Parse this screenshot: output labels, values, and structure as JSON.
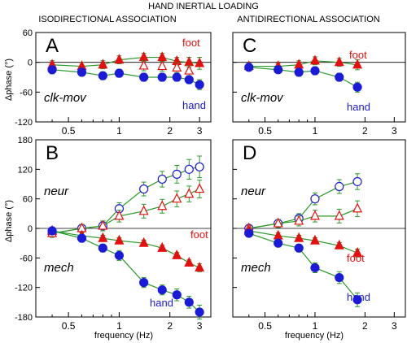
{
  "figure": {
    "title": "HAND INERTIAL LOADING",
    "column_titles": [
      "ISODIRECTIONAL ASSOCIATION",
      "ANTIDIRECTIONAL ASSOCIATION"
    ],
    "xlabel": "frequency (Hz)",
    "ylabel": "Δphase (°)"
  },
  "colors": {
    "hand": "#1a1adb",
    "foot": "#e80e0e",
    "fit": "#2a9a2a",
    "axis": "#000000",
    "zero_line": "#000000"
  },
  "chart_data": [
    {
      "panel": "A",
      "type": "scatter",
      "condition_label": "clk-mov",
      "x_scale": "log",
      "xlim": [
        0.32,
        3.5
      ],
      "xticks": [
        0.5,
        1,
        2,
        3
      ],
      "xtick_labels": [
        "0.5",
        "1",
        "2",
        "3"
      ],
      "ylim": [
        -120,
        60
      ],
      "yticks": [
        60,
        0,
        -60,
        -120
      ],
      "annotations": [
        {
          "text": "foot",
          "series": "foot"
        },
        {
          "text": "hand",
          "series": "hand"
        }
      ],
      "series": [
        {
          "name": "foot",
          "marker": "triangle-filled",
          "x": [
            0.4,
            0.6,
            0.8,
            1.0,
            1.4,
            1.8,
            2.2,
            2.6,
            3.0
          ],
          "y": [
            -5,
            -8,
            -5,
            5,
            10,
            10,
            2,
            0,
            -2
          ],
          "err": [
            8,
            8,
            8,
            8,
            8,
            8,
            8,
            10,
            12
          ]
        },
        {
          "name": "foot fit",
          "marker": "triangle-open",
          "x": [
            1.4,
            1.8,
            2.2,
            2.6
          ],
          "y": [
            -7,
            -8,
            -11,
            -17
          ],
          "err": [
            10,
            10,
            10,
            10
          ]
        },
        {
          "name": "hand",
          "marker": "circle-filled",
          "x": [
            0.4,
            0.6,
            0.8,
            1.0,
            1.4,
            1.8,
            2.2,
            2.6,
            3.0
          ],
          "y": [
            -15,
            -20,
            -27,
            -22,
            -30,
            -30,
            -30,
            -35,
            -45
          ],
          "err": [
            8,
            8,
            8,
            8,
            8,
            8,
            8,
            8,
            10
          ]
        }
      ]
    },
    {
      "panel": "C",
      "type": "scatter",
      "condition_label": "clk-mov",
      "x_scale": "log",
      "xlim": [
        0.32,
        3.5
      ],
      "xticks": [
        0.5,
        1,
        2,
        3
      ],
      "xtick_labels": [
        "0.5",
        "1",
        "2",
        "3"
      ],
      "ylim": [
        -120,
        60
      ],
      "yticks": [
        60,
        0,
        -60,
        -120
      ],
      "annotations": [
        {
          "text": "foot",
          "series": "foot"
        },
        {
          "text": "hand",
          "series": "hand"
        }
      ],
      "series": [
        {
          "name": "foot",
          "marker": "triangle-filled",
          "x": [
            0.4,
            0.6,
            0.8,
            1.0,
            1.4,
            1.8
          ],
          "y": [
            -8,
            -8,
            -5,
            3,
            0,
            -5
          ],
          "err": [
            6,
            6,
            8,
            8,
            8,
            10
          ]
        },
        {
          "name": "hand",
          "marker": "circle-filled",
          "x": [
            0.4,
            0.6,
            0.8,
            1.0,
            1.4,
            1.8
          ],
          "y": [
            -10,
            -15,
            -20,
            -17,
            -30,
            -50
          ],
          "err": [
            6,
            6,
            8,
            8,
            8,
            10
          ]
        }
      ]
    },
    {
      "panel": "B",
      "type": "scatter",
      "condition_labels": [
        "neur",
        "mech"
      ],
      "x_scale": "log",
      "xlim": [
        0.32,
        3.5
      ],
      "xticks": [
        0.5,
        1,
        2,
        3
      ],
      "xtick_labels": [
        "0.5",
        "1",
        "2",
        "3"
      ],
      "ylim": [
        -180,
        180
      ],
      "yticks": [
        180,
        120,
        60,
        0,
        -60,
        -120,
        -180
      ],
      "annotations": [
        {
          "text": "foot",
          "series": "foot mech"
        },
        {
          "text": "hand",
          "series": "hand mech"
        }
      ],
      "series": [
        {
          "name": "hand neur",
          "marker": "circle-open",
          "x": [
            0.4,
            0.6,
            0.8,
            1.0,
            1.4,
            1.8,
            2.2,
            2.6,
            3.0
          ],
          "y": [
            -10,
            0,
            5,
            40,
            80,
            100,
            110,
            120,
            125
          ],
          "err": [
            8,
            8,
            10,
            12,
            14,
            16,
            18,
            20,
            22
          ]
        },
        {
          "name": "foot neur",
          "marker": "triangle-open",
          "x": [
            0.4,
            0.6,
            0.8,
            1.0,
            1.4,
            1.8,
            2.2,
            2.6,
            3.0
          ],
          "y": [
            -10,
            0,
            5,
            25,
            35,
            45,
            60,
            70,
            80
          ],
          "err": [
            8,
            8,
            10,
            12,
            14,
            14,
            16,
            16,
            18
          ]
        },
        {
          "name": "foot mech",
          "marker": "triangle-filled",
          "x": [
            0.4,
            0.6,
            0.8,
            1.0,
            1.4,
            1.8,
            2.2,
            2.6,
            3.0
          ],
          "y": [
            -5,
            -15,
            -20,
            -25,
            -30,
            -40,
            -55,
            -70,
            -80
          ],
          "err": [
            6,
            6,
            6,
            6,
            6,
            6,
            6,
            6,
            8
          ]
        },
        {
          "name": "hand mech",
          "marker": "circle-filled",
          "x": [
            0.4,
            0.6,
            0.8,
            1.0,
            1.4,
            1.8,
            2.2,
            2.6,
            3.0
          ],
          "y": [
            -5,
            -20,
            -40,
            -55,
            -110,
            -125,
            -135,
            -150,
            -170
          ],
          "err": [
            6,
            8,
            8,
            10,
            10,
            10,
            12,
            12,
            14
          ]
        }
      ]
    },
    {
      "panel": "D",
      "type": "scatter",
      "condition_labels": [
        "neur",
        "mech"
      ],
      "x_scale": "log",
      "xlim": [
        0.32,
        3.5
      ],
      "xticks": [
        0.5,
        1,
        2,
        3
      ],
      "xtick_labels": [
        "0.5",
        "1",
        "2",
        "3"
      ],
      "ylim": [
        -180,
        180
      ],
      "yticks": [
        180,
        120,
        60,
        0,
        -60,
        -120,
        -180
      ],
      "annotations": [
        {
          "text": "foot",
          "series": "foot mech"
        },
        {
          "text": "hand",
          "series": "hand mech"
        }
      ],
      "series": [
        {
          "name": "hand neur",
          "marker": "circle-open",
          "x": [
            0.4,
            0.6,
            0.8,
            1.0,
            1.4,
            1.8
          ],
          "y": [
            0,
            10,
            20,
            60,
            85,
            95
          ],
          "err": [
            6,
            8,
            10,
            12,
            14,
            16
          ]
        },
        {
          "name": "foot neur",
          "marker": "triangle-open",
          "x": [
            0.4,
            0.6,
            0.8,
            1.0,
            1.4,
            1.8
          ],
          "y": [
            0,
            10,
            15,
            25,
            25,
            40
          ],
          "err": [
            6,
            8,
            10,
            12,
            14,
            16
          ]
        },
        {
          "name": "foot mech",
          "marker": "triangle-filled",
          "x": [
            0.4,
            0.6,
            0.8,
            1.0,
            1.4,
            1.8
          ],
          "y": [
            -5,
            -15,
            -20,
            -25,
            -35,
            -50
          ],
          "err": [
            6,
            6,
            6,
            6,
            6,
            8
          ]
        },
        {
          "name": "hand mech",
          "marker": "circle-filled",
          "x": [
            0.4,
            0.6,
            0.8,
            1.0,
            1.4,
            1.8
          ],
          "y": [
            -10,
            -30,
            -40,
            -80,
            -100,
            -145
          ],
          "err": [
            6,
            8,
            8,
            10,
            12,
            14
          ]
        }
      ]
    }
  ]
}
